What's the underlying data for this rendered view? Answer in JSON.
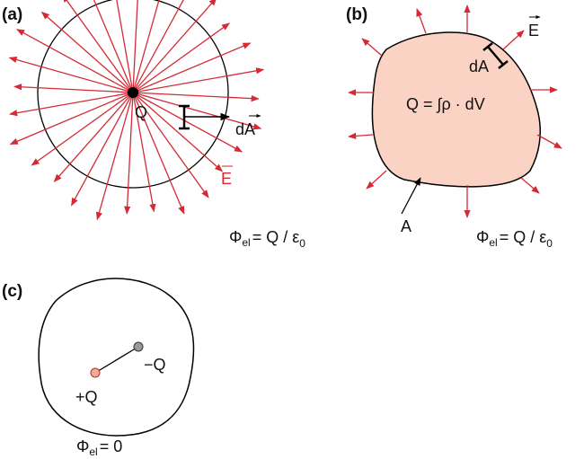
{
  "panels": [
    {
      "label": "(a)",
      "charge": "Q",
      "area_element": "dA",
      "field": "E",
      "flux": {
        "symbol": "Φ",
        "subscript": "el",
        "relation": "= Q / ε",
        "relation_subscript": "0"
      }
    },
    {
      "label": "(b)",
      "field": "E",
      "area_element": "dA",
      "charge_formula": "Q = ∫ρ · dV",
      "surface": "A",
      "flux": {
        "symbol": "Φ",
        "subscript": "el",
        "relation": "= Q / ε",
        "relation_subscript": "0"
      }
    },
    {
      "label": "(c)",
      "negative_charge": "−Q",
      "positive_charge": "+Q",
      "flux": {
        "symbol": "Φ",
        "subscript": "el",
        "relation": "= 0"
      }
    }
  ]
}
